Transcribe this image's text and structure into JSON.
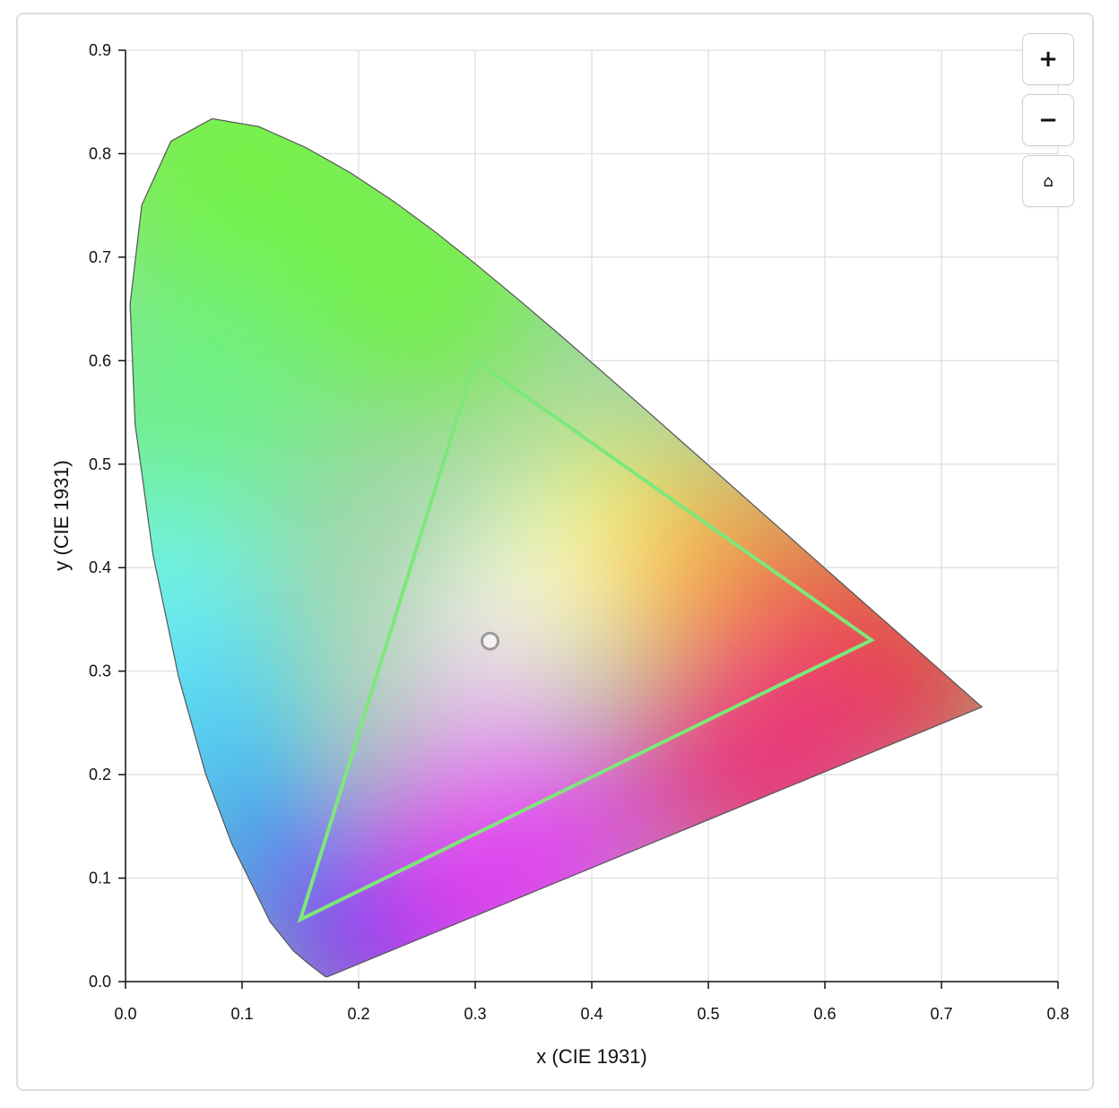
{
  "chart_data": {
    "type": "scatter",
    "title": "",
    "xlabel": "x (CIE 1931)",
    "ylabel": "y (CIE 1931)",
    "xlim": [
      0,
      0.8
    ],
    "ylim": [
      0,
      0.9
    ],
    "x_ticks": [
      "0.0",
      "0.1",
      "0.2",
      "0.3",
      "0.4",
      "0.5",
      "0.6",
      "0.7",
      "0.8"
    ],
    "y_ticks": [
      "0.0",
      "0.1",
      "0.2",
      "0.3",
      "0.4",
      "0.5",
      "0.6",
      "0.7",
      "0.8",
      "0.9"
    ],
    "grid": true,
    "spectral_locus": [
      [
        0.1741,
        0.005
      ],
      [
        0.1733,
        0.0048
      ],
      [
        0.172,
        0.0048
      ],
      [
        0.171,
        0.0051
      ],
      [
        0.1689,
        0.0069
      ],
      [
        0.1644,
        0.0109
      ],
      [
        0.1566,
        0.0177
      ],
      [
        0.144,
        0.0297
      ],
      [
        0.1241,
        0.0578
      ],
      [
        0.0913,
        0.1327
      ],
      [
        0.0687,
        0.2007
      ],
      [
        0.0454,
        0.295
      ],
      [
        0.0235,
        0.4127
      ],
      [
        0.0082,
        0.5384
      ],
      [
        0.0039,
        0.6548
      ],
      [
        0.0139,
        0.7502
      ],
      [
        0.0389,
        0.812
      ],
      [
        0.0743,
        0.8338
      ],
      [
        0.1142,
        0.8262
      ],
      [
        0.1547,
        0.8059
      ],
      [
        0.1929,
        0.7816
      ],
      [
        0.2296,
        0.7543
      ],
      [
        0.2658,
        0.7243
      ],
      [
        0.3016,
        0.6923
      ],
      [
        0.3373,
        0.6589
      ],
      [
        0.3731,
        0.6245
      ],
      [
        0.4087,
        0.5896
      ],
      [
        0.4441,
        0.5547
      ],
      [
        0.4788,
        0.5202
      ],
      [
        0.5125,
        0.4866
      ],
      [
        0.5448,
        0.4544
      ],
      [
        0.5752,
        0.4242
      ],
      [
        0.6029,
        0.3965
      ],
      [
        0.627,
        0.3725
      ],
      [
        0.6482,
        0.3514
      ],
      [
        0.6658,
        0.334
      ],
      [
        0.6915,
        0.3083
      ],
      [
        0.714,
        0.2859
      ],
      [
        0.7347,
        0.2653
      ]
    ],
    "gamut_triangle": {
      "red": [
        0.64,
        0.33
      ],
      "green": [
        0.3,
        0.6
      ],
      "blue": [
        0.15,
        0.06
      ]
    },
    "white_point": [
      0.3127,
      0.329
    ],
    "colors": {
      "gamut_stroke": "#7de87a",
      "locus_stroke": "#555555",
      "white_point_stroke": "#9a9a9a",
      "grid": "#dddddd"
    }
  },
  "controls": {
    "zoom_in_label": "+",
    "zoom_out_label": "−",
    "reset_label": "⌂"
  }
}
